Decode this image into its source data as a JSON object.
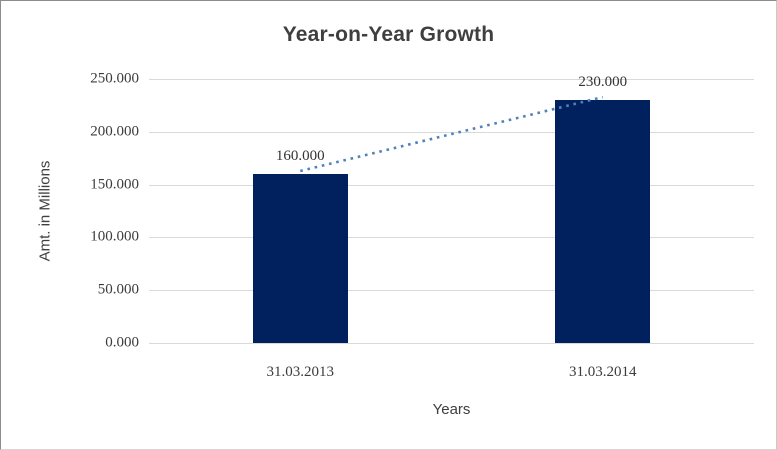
{
  "chart_data": {
    "type": "bar",
    "title": "Year-on-Year Growth",
    "xlabel": "Years",
    "ylabel": "Amt. in Millions",
    "categories": [
      "31.03.2013",
      "31.03.2014"
    ],
    "values": [
      160,
      230
    ],
    "value_labels": [
      "160.000",
      "230.000"
    ],
    "y_ticks": [
      {
        "value": 0,
        "label": "0.000"
      },
      {
        "value": 50,
        "label": "50.000"
      },
      {
        "value": 100,
        "label": "100.000"
      },
      {
        "value": 150,
        "label": "150.000"
      },
      {
        "value": 200,
        "label": "200.000"
      },
      {
        "value": 250,
        "label": "250.000"
      }
    ],
    "ylim": [
      0,
      250
    ],
    "grid": true,
    "legend_position": "none",
    "bar_color": "#00215e",
    "trendline": {
      "type": "linear",
      "style": "dotted",
      "color": "#4f81bd"
    },
    "colors": {
      "title_text": "#3f3f3f",
      "axis_text": "#3c3c3c",
      "gridline": "#d9d9d9",
      "background": "#ffffff"
    }
  }
}
